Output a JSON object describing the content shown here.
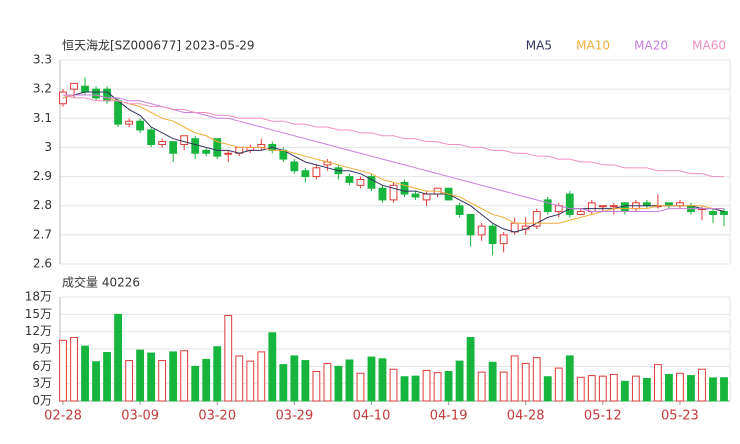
{
  "chart_data": [
    {
      "type": "candlestick",
      "title": "恒天海龙[SZ000677] 2023-05-29",
      "categories": [
        "02-28",
        null,
        null,
        null,
        null,
        null,
        null,
        "03-09",
        null,
        null,
        null,
        null,
        null,
        null,
        "03-20",
        null,
        null,
        null,
        null,
        null,
        null,
        "03-29",
        null,
        null,
        null,
        null,
        null,
        null,
        "04-10",
        null,
        null,
        null,
        null,
        null,
        null,
        "04-19",
        null,
        null,
        null,
        null,
        null,
        null,
        "04-28",
        null,
        null,
        null,
        null,
        null,
        null,
        "05-12",
        null,
        null,
        null,
        null,
        null,
        null,
        "05-23",
        null,
        null,
        null,
        null
      ],
      "open": [
        3.15,
        3.2,
        3.21,
        3.2,
        3.2,
        3.16,
        3.08,
        3.09,
        3.06,
        3.01,
        3.02,
        3.01,
        3.03,
        2.99,
        3.03,
        2.98,
        2.98,
        2.99,
        3.0,
        3.01,
        2.99,
        2.95,
        2.92,
        2.9,
        2.94,
        2.93,
        2.9,
        2.87,
        2.9,
        2.86,
        2.82,
        2.88,
        2.84,
        2.82,
        2.84,
        2.86,
        2.8,
        2.77,
        2.7,
        2.73,
        2.67,
        2.71,
        2.72,
        2.73,
        2.82,
        2.78,
        2.84,
        2.77,
        2.78,
        2.8,
        2.8,
        2.81,
        2.79,
        2.81,
        2.8,
        2.81,
        2.8,
        2.8,
        2.79,
        2.78,
        2.78
      ],
      "high": [
        3.2,
        3.22,
        3.24,
        3.21,
        3.21,
        3.17,
        3.1,
        3.1,
        3.07,
        3.03,
        3.02,
        3.04,
        3.04,
        3.0,
        3.03,
        2.99,
        3.0,
        3.01,
        3.03,
        3.02,
        3.0,
        2.96,
        2.93,
        2.94,
        2.96,
        2.94,
        2.91,
        2.9,
        2.91,
        2.87,
        2.88,
        2.89,
        2.85,
        2.85,
        2.86,
        2.86,
        2.81,
        2.77,
        2.74,
        2.74,
        2.71,
        2.76,
        2.76,
        2.79,
        2.83,
        2.81,
        2.85,
        2.79,
        2.82,
        2.8,
        2.81,
        2.81,
        2.82,
        2.82,
        2.84,
        2.81,
        2.82,
        2.81,
        2.8,
        2.79,
        2.79
      ],
      "low": [
        3.14,
        3.17,
        3.18,
        3.16,
        3.15,
        3.07,
        3.07,
        3.05,
        3.0,
        3.0,
        2.95,
        2.99,
        2.96,
        2.97,
        2.96,
        2.95,
        2.97,
        2.98,
        2.99,
        2.98,
        2.95,
        2.91,
        2.88,
        2.89,
        2.92,
        2.89,
        2.87,
        2.86,
        2.85,
        2.81,
        2.81,
        2.83,
        2.82,
        2.8,
        2.83,
        2.82,
        2.76,
        2.66,
        2.68,
        2.63,
        2.64,
        2.7,
        2.7,
        2.72,
        2.77,
        2.76,
        2.76,
        2.77,
        2.77,
        2.78,
        2.77,
        2.77,
        2.78,
        2.79,
        2.79,
        2.79,
        2.79,
        2.77,
        2.75,
        2.74,
        2.73
      ],
      "close": [
        3.19,
        3.22,
        3.19,
        3.17,
        3.16,
        3.08,
        3.09,
        3.06,
        3.01,
        3.02,
        2.98,
        3.04,
        2.98,
        2.98,
        2.97,
        2.98,
        3.0,
        3.0,
        3.01,
        2.99,
        2.96,
        2.92,
        2.9,
        2.93,
        2.95,
        2.91,
        2.88,
        2.89,
        2.86,
        2.82,
        2.87,
        2.84,
        2.83,
        2.84,
        2.86,
        2.82,
        2.77,
        2.7,
        2.73,
        2.67,
        2.7,
        2.74,
        2.73,
        2.78,
        2.78,
        2.8,
        2.77,
        2.78,
        2.81,
        2.8,
        2.8,
        2.78,
        2.81,
        2.8,
        2.8,
        2.8,
        2.81,
        2.78,
        2.79,
        2.77,
        2.77
      ],
      "up_color": "#e03a3a",
      "down_color": "#17b53d",
      "series": [
        {
          "name": "MA5",
          "color": "#33335e",
          "values": [
            3.17,
            3.18,
            3.19,
            3.19,
            3.19,
            3.16,
            3.13,
            3.11,
            3.07,
            3.05,
            3.03,
            3.02,
            3.01,
            3.0,
            2.99,
            2.99,
            2.98,
            2.99,
            2.99,
            3.0,
            2.99,
            2.97,
            2.95,
            2.94,
            2.93,
            2.92,
            2.92,
            2.91,
            2.89,
            2.87,
            2.86,
            2.85,
            2.85,
            2.84,
            2.84,
            2.84,
            2.82,
            2.8,
            2.77,
            2.74,
            2.72,
            2.71,
            2.72,
            2.74,
            2.76,
            2.77,
            2.79,
            2.79,
            2.79,
            2.79,
            2.79,
            2.8,
            2.8,
            2.8,
            2.8,
            2.8,
            2.8,
            2.8,
            2.79,
            2.79,
            2.78
          ]
        },
        {
          "name": "MA10",
          "color": "#f2ad3c",
          "values": [
            3.17,
            3.18,
            3.18,
            3.18,
            3.17,
            3.16,
            3.15,
            3.14,
            3.12,
            3.1,
            3.09,
            3.07,
            3.05,
            3.04,
            3.02,
            3.01,
            3.0,
            3.0,
            3.0,
            2.99,
            2.99,
            2.98,
            2.97,
            2.96,
            2.95,
            2.94,
            2.93,
            2.92,
            2.91,
            2.89,
            2.88,
            2.87,
            2.86,
            2.85,
            2.85,
            2.84,
            2.83,
            2.81,
            2.79,
            2.77,
            2.76,
            2.74,
            2.74,
            2.74,
            2.74,
            2.74,
            2.75,
            2.76,
            2.77,
            2.78,
            2.79,
            2.79,
            2.79,
            2.79,
            2.8,
            2.8,
            2.8,
            2.8,
            2.8,
            2.79,
            2.79
          ]
        },
        {
          "name": "MA20",
          "color": "#c77fe0",
          "values": [
            3.18,
            3.18,
            3.18,
            3.18,
            3.17,
            3.17,
            3.16,
            3.16,
            3.15,
            3.14,
            3.13,
            3.12,
            3.12,
            3.11,
            3.1,
            3.1,
            3.09,
            3.08,
            3.07,
            3.06,
            3.05,
            3.04,
            3.03,
            3.02,
            3.01,
            3.0,
            2.99,
            2.98,
            2.97,
            2.96,
            2.95,
            2.94,
            2.93,
            2.92,
            2.91,
            2.9,
            2.89,
            2.88,
            2.87,
            2.86,
            2.85,
            2.84,
            2.83,
            2.82,
            2.81,
            2.8,
            2.79,
            2.79,
            2.78,
            2.78,
            2.78,
            2.78,
            2.78,
            2.78,
            2.78,
            2.79,
            2.79,
            2.79,
            2.79,
            2.79,
            2.79
          ]
        },
        {
          "name": "MA60",
          "color": "#f28fc2",
          "values": [
            3.18,
            3.17,
            3.17,
            3.16,
            3.16,
            3.16,
            3.15,
            3.15,
            3.14,
            3.14,
            3.13,
            3.13,
            3.12,
            3.12,
            3.11,
            3.11,
            3.1,
            3.1,
            3.1,
            3.09,
            3.09,
            3.08,
            3.08,
            3.07,
            3.07,
            3.06,
            3.06,
            3.05,
            3.05,
            3.04,
            3.04,
            3.03,
            3.03,
            3.02,
            3.02,
            3.01,
            3.01,
            3.0,
            3.0,
            2.99,
            2.99,
            2.98,
            2.98,
            2.97,
            2.97,
            2.96,
            2.96,
            2.95,
            2.95,
            2.94,
            2.94,
            2.93,
            2.93,
            2.93,
            2.92,
            2.92,
            2.92,
            2.91,
            2.91,
            2.9,
            2.9
          ]
        }
      ],
      "ylim": [
        2.6,
        3.3
      ],
      "yticks": [
        2.6,
        2.7,
        2.8,
        2.9,
        3,
        3.1,
        3.2,
        3.3
      ],
      "grid": true
    },
    {
      "type": "bar",
      "title": "成交量 40226",
      "values": [
        10.5,
        11,
        9.5,
        6.8,
        8.4,
        15,
        7,
        8.8,
        8.3,
        7,
        8.5,
        8.7,
        6,
        7.2,
        9.4,
        14.8,
        7.8,
        6.9,
        8.5,
        11.8,
        6.3,
        7.8,
        7,
        5.1,
        6.5,
        6,
        7.1,
        4.8,
        7.6,
        7.3,
        5.5,
        4.2,
        4.3,
        5.3,
        4.9,
        5.1,
        6.9,
        11,
        5,
        6.7,
        5,
        7.8,
        6.5,
        7.5,
        4.2,
        5.7,
        7.8,
        4.1,
        4.4,
        4.3,
        4.6,
        3.4,
        4.3,
        3.9,
        6.3,
        4.6,
        4.8,
        4.4,
        5.5,
        4.0,
        4.0226
      ],
      "ylim": [
        0,
        18
      ],
      "yticks": [
        {
          "value": 0,
          "label": "0万"
        },
        {
          "value": 3,
          "label": "3万"
        },
        {
          "value": 6,
          "label": "6万"
        },
        {
          "value": 9,
          "label": "9万"
        },
        {
          "value": 12,
          "label": "12万"
        },
        {
          "value": 15,
          "label": "15万"
        },
        {
          "value": 18,
          "label": "18万"
        }
      ],
      "grid": true
    }
  ]
}
